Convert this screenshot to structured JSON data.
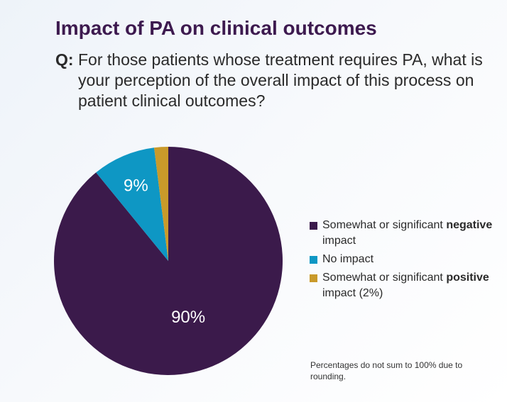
{
  "title": "Impact of PA on clinical outcomes",
  "question": {
    "prefix": "Q:",
    "text": "For those patients whose treatment requires PA, what is your perception of the overall impact of this process on patient clinical outcomes?"
  },
  "chart_data": {
    "type": "pie",
    "slices": [
      {
        "name": "Somewhat or significant negative impact",
        "value": 90,
        "label": "90%",
        "color": "#3b1a4b"
      },
      {
        "name": "No impact",
        "value": 9,
        "label": "9%",
        "color": "#0e97c4"
      },
      {
        "name": "Somewhat or significant positive impact (2%)",
        "value": 2,
        "label": "",
        "color": "#c99a2a"
      }
    ]
  },
  "legend": [
    {
      "pre": "Somewhat or significant ",
      "bold": "negative",
      "post": " impact",
      "color": "#3b1a4b"
    },
    {
      "pre": "No impact",
      "bold": "",
      "post": "",
      "color": "#0e97c4"
    },
    {
      "pre": "Somewhat or significant ",
      "bold": "positive",
      "post": " impact (2%)",
      "color": "#c99a2a"
    }
  ],
  "note": "Percentages do not sum to 100% due to rounding."
}
